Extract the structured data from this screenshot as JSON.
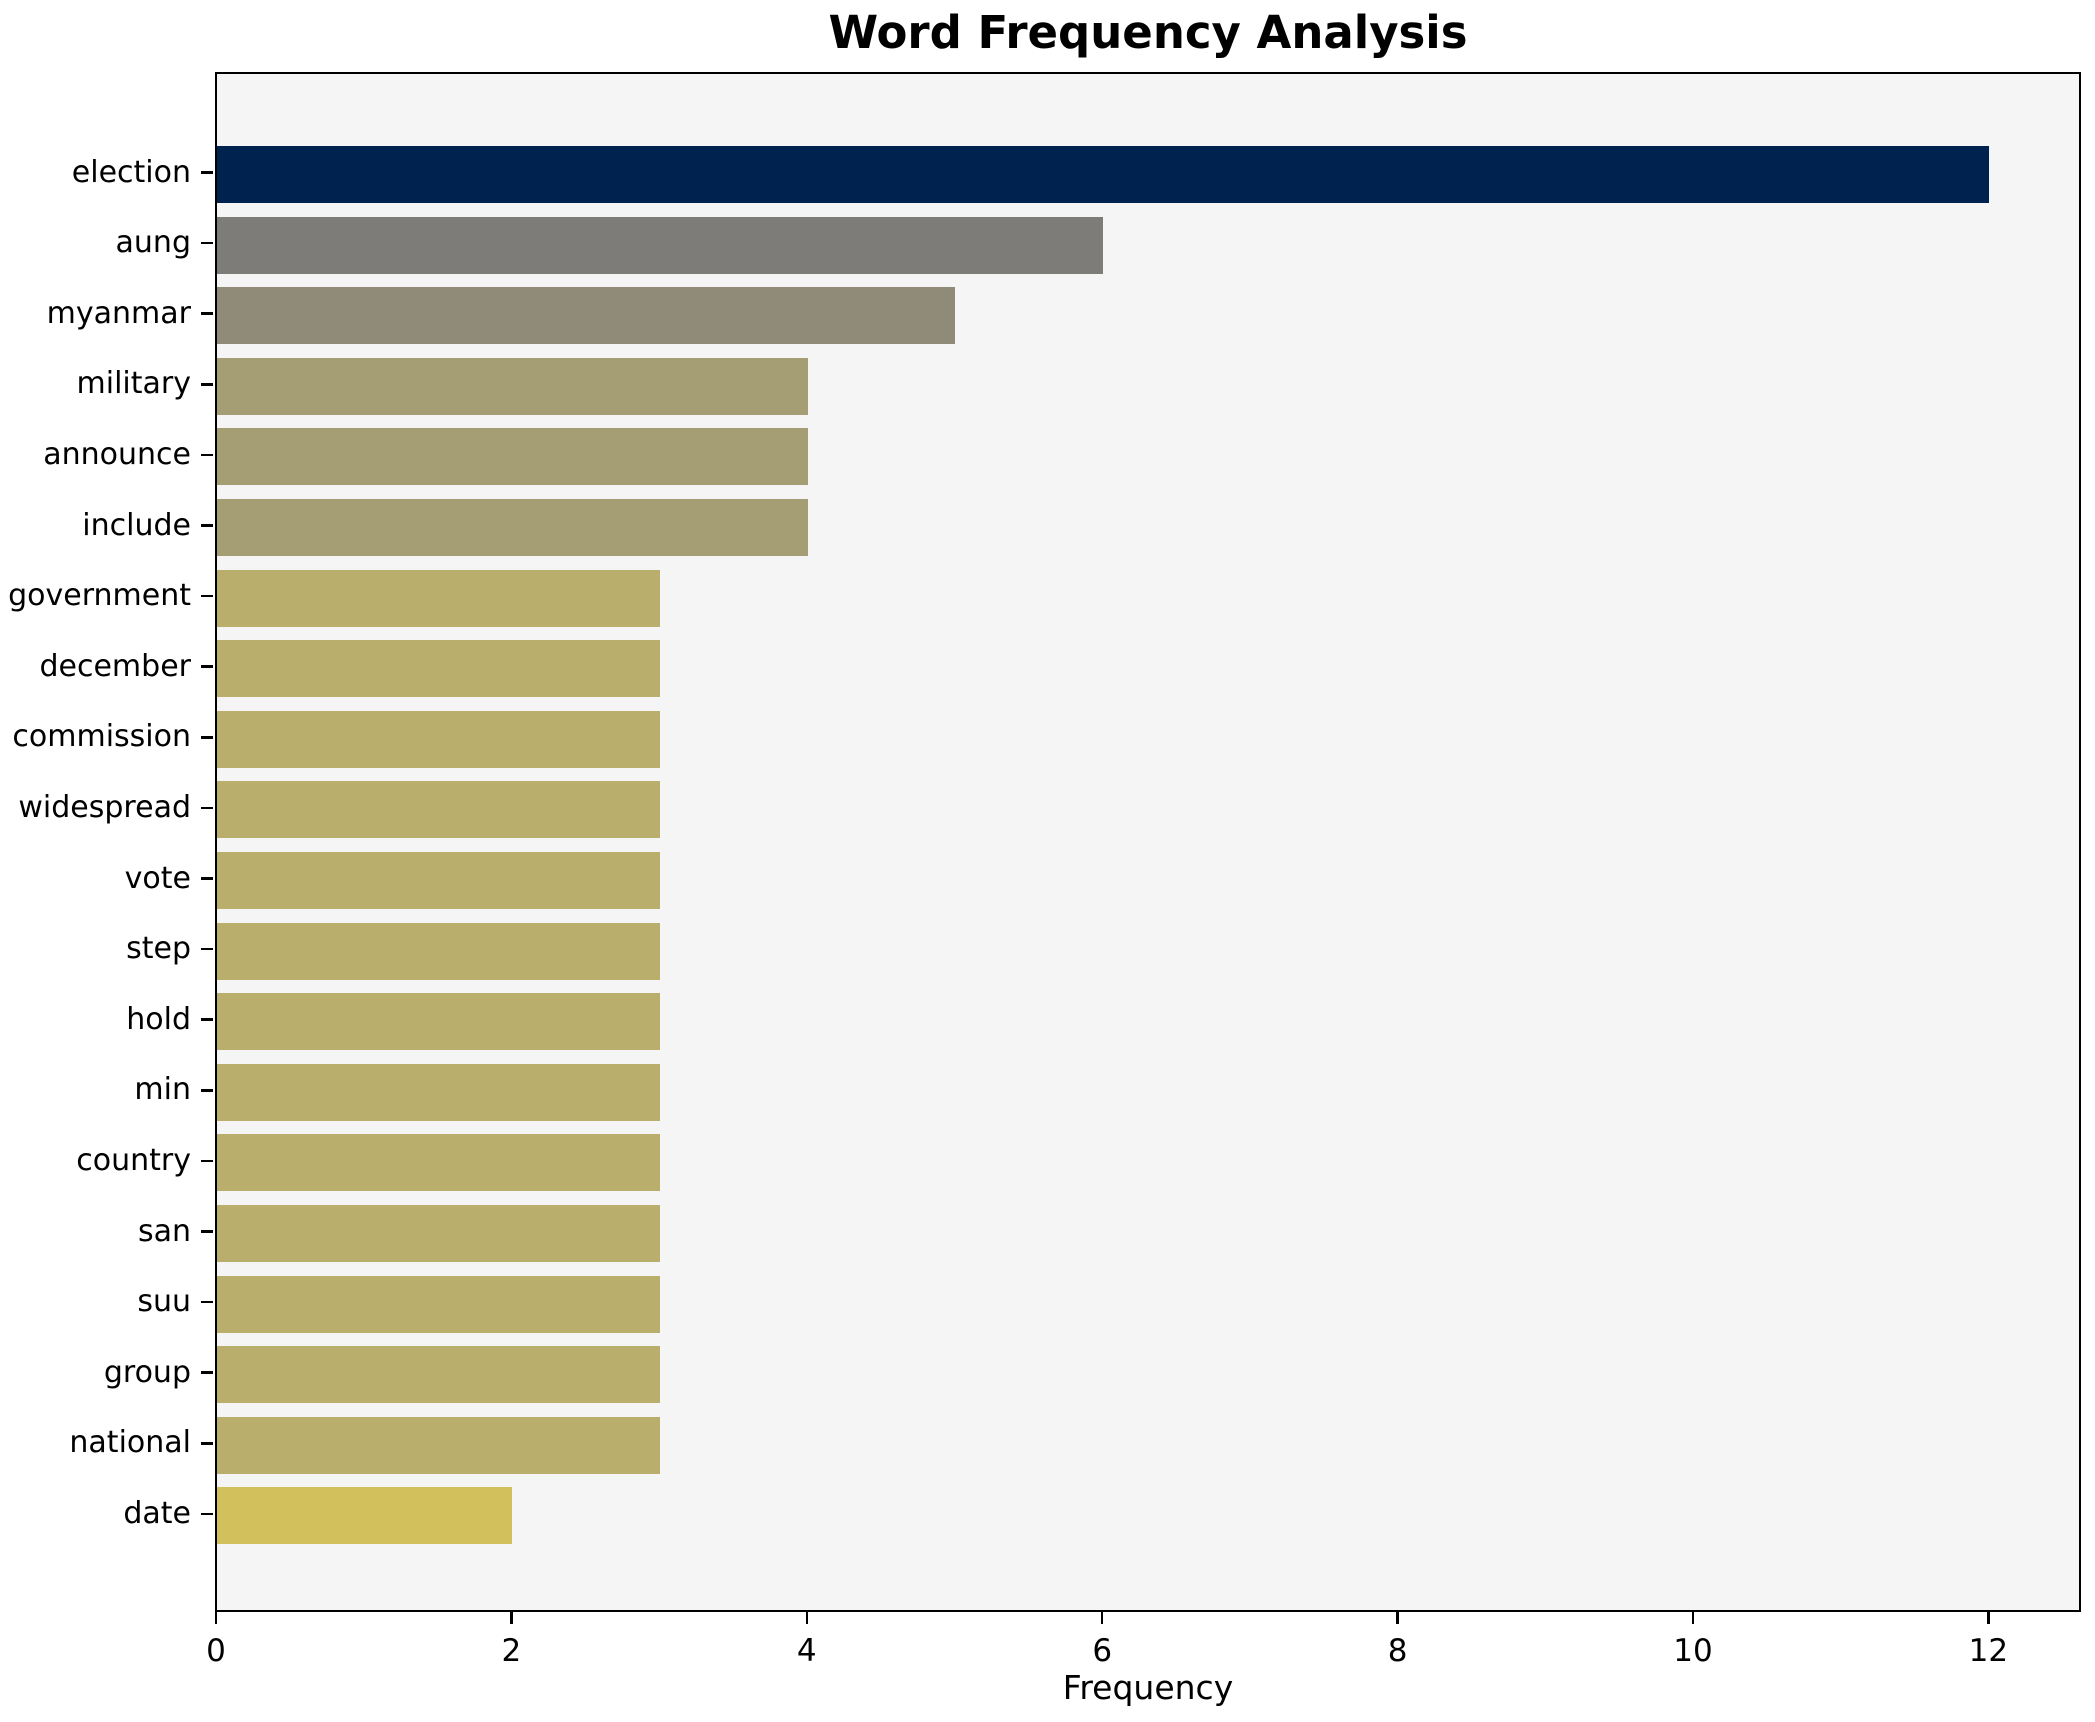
{
  "chart_data": {
    "type": "bar",
    "orientation": "horizontal",
    "title": "Word Frequency Analysis",
    "xlabel": "Frequency",
    "ylabel": "",
    "categories": [
      "election",
      "aung",
      "myanmar",
      "military",
      "announce",
      "include",
      "government",
      "december",
      "commission",
      "widespread",
      "vote",
      "step",
      "hold",
      "min",
      "country",
      "san",
      "suu",
      "group",
      "national",
      "date"
    ],
    "values": [
      12,
      6,
      5,
      4,
      4,
      4,
      3,
      3,
      3,
      3,
      3,
      3,
      3,
      3,
      3,
      3,
      3,
      3,
      3,
      2
    ],
    "xlim": [
      0,
      12.6
    ],
    "xticks": [
      0,
      2,
      4,
      6,
      8,
      10,
      12
    ],
    "grid": false,
    "legend": null,
    "colors": {
      "by_value": {
        "12": "#00224e",
        "6": "#7d7c78",
        "5": "#908b78",
        "4": "#a59d73",
        "3": "#b9ae6b",
        "2": "#d2c05c"
      }
    },
    "plot_background": "#f5f5f6",
    "figure_background": "#ffffff",
    "spine_color": "#000000",
    "text_color": "#000000"
  }
}
